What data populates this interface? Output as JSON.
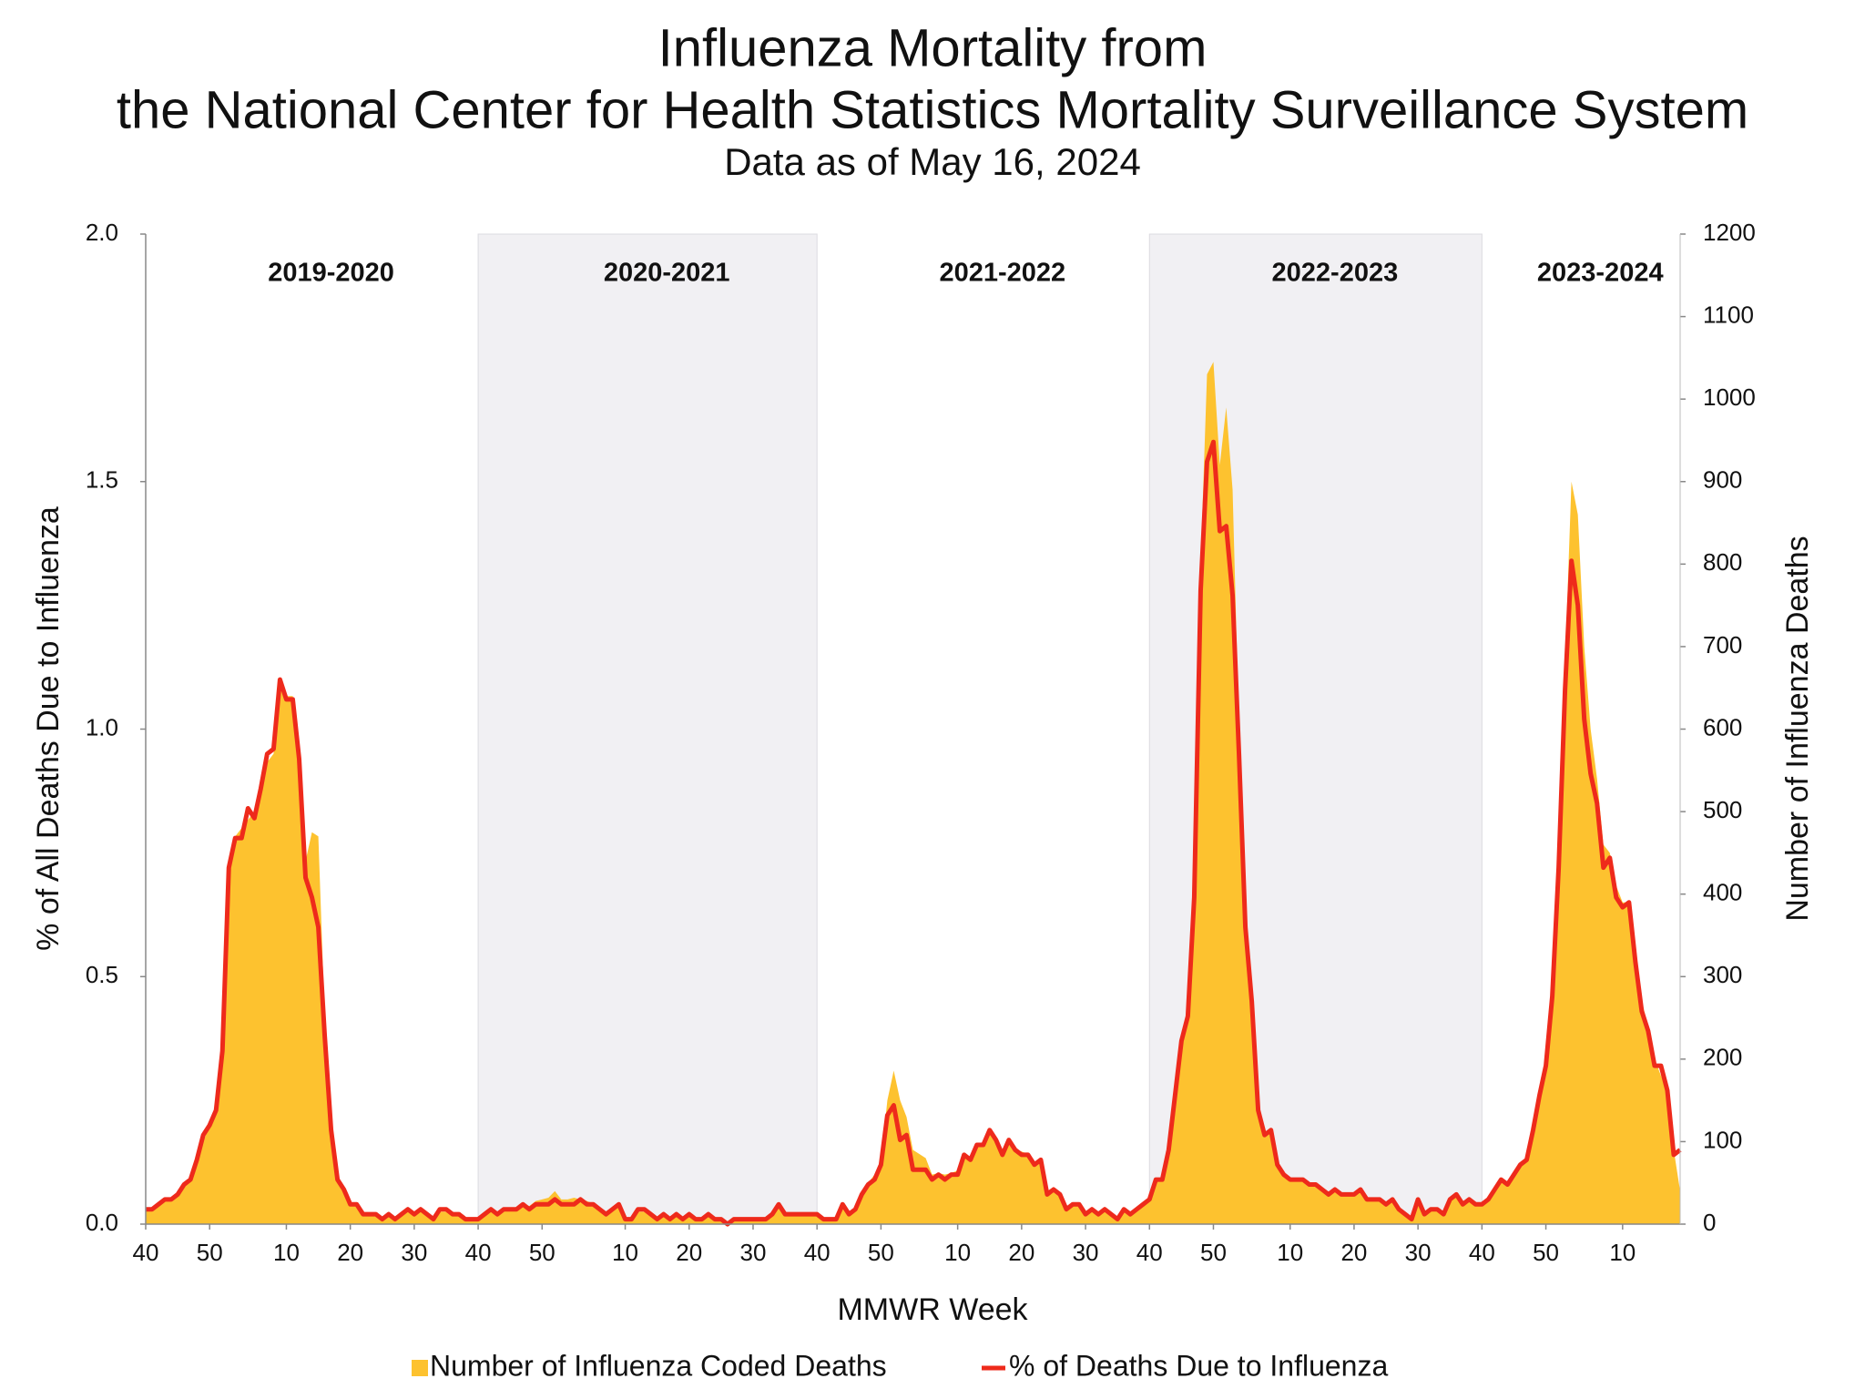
{
  "chart_data": {
    "type": "area_line",
    "title": [
      "Influenza Mortality from",
      "the National Center for Health Statistics Mortality Surveillance System"
    ],
    "subtitle": "Data as of May 16, 2024",
    "x_label": "MMWR Week",
    "y_label": "% of All Deaths Due to Influenza",
    "y2_label": "Number of Influenza Deaths",
    "annotations": [
      "2019-2020",
      "2020-2021",
      "2021-2022",
      "2022-2023",
      "2023-2024"
    ],
    "xlim": [
      0,
      240
    ],
    "xticks": [
      {
        "value": 0,
        "label": "40"
      },
      {
        "value": 10,
        "label": "50"
      },
      {
        "value": 22,
        "label": "10"
      },
      {
        "value": 32,
        "label": "20"
      },
      {
        "value": 42,
        "label": "30"
      },
      {
        "value": 52,
        "label": "40"
      },
      {
        "value": 62,
        "label": "50"
      },
      {
        "value": 75,
        "label": "10"
      },
      {
        "value": 85,
        "label": "20"
      },
      {
        "value": 95,
        "label": "30"
      },
      {
        "value": 105,
        "label": "40"
      },
      {
        "value": 115,
        "label": "50"
      },
      {
        "value": 127,
        "label": "10"
      },
      {
        "value": 137,
        "label": "20"
      },
      {
        "value": 147,
        "label": "30"
      },
      {
        "value": 157,
        "label": "40"
      },
      {
        "value": 167,
        "label": "50"
      },
      {
        "value": 179,
        "label": "10"
      },
      {
        "value": 189,
        "label": "20"
      },
      {
        "value": 199,
        "label": "30"
      },
      {
        "value": 209,
        "label": "40"
      },
      {
        "value": 219,
        "label": "50"
      },
      {
        "value": 231,
        "label": "10"
      }
    ],
    "ylim": [
      0,
      2
    ],
    "yticks": [
      {
        "value": 0,
        "label": "0.0"
      },
      {
        "value": 0.5,
        "label": "0.5"
      },
      {
        "value": 1,
        "label": "1.0"
      },
      {
        "value": 1.5,
        "label": "1.5"
      },
      {
        "value": 2,
        "label": "2.0"
      }
    ],
    "y2lim": [
      0,
      1200
    ],
    "y2ticks": [
      0,
      100,
      200,
      300,
      400,
      500,
      600,
      700,
      800,
      900,
      1000,
      1100,
      1200
    ],
    "legend": "bottom",
    "series": [
      {
        "name": "Number of Influenza Coded Deaths",
        "color": "#fdc22f",
        "axis": "y2",
        "kind": "area",
        "values": [
          18,
          18,
          22,
          28,
          30,
          35,
          45,
          58,
          75,
          100,
          120,
          135,
          210,
          430,
          470,
          480,
          490,
          500,
          530,
          560,
          570,
          650,
          640,
          640,
          570,
          440,
          475,
          470,
          250,
          115,
          55,
          40,
          25,
          22,
          15,
          12,
          12,
          8,
          12,
          8,
          12,
          15,
          12,
          15,
          10,
          8,
          15,
          15,
          10,
          10,
          8,
          8,
          8,
          10,
          15,
          14,
          18,
          20,
          20,
          25,
          22,
          28,
          30,
          32,
          40,
          30,
          30,
          32,
          30,
          28,
          25,
          20,
          15,
          18,
          20,
          8,
          8,
          15,
          15,
          12,
          8,
          10,
          8,
          10,
          8,
          10,
          6,
          6,
          10,
          6,
          6,
          3,
          6,
          8,
          8,
          8,
          8,
          8,
          12,
          22,
          12,
          12,
          12,
          12,
          12,
          12,
          8,
          8,
          8,
          22,
          12,
          20,
          40,
          50,
          60,
          75,
          150,
          186,
          150,
          130,
          90,
          85,
          80,
          60,
          62,
          60,
          62,
          65,
          85,
          80,
          95,
          98,
          110,
          100,
          88,
          100,
          90,
          88,
          85,
          75,
          80,
          40,
          45,
          35,
          20,
          25,
          25,
          12,
          18,
          12,
          18,
          12,
          8,
          18,
          12,
          18,
          25,
          30,
          55,
          55,
          90,
          160,
          230,
          260,
          420,
          800,
          1030,
          1045,
          920,
          990,
          890,
          600,
          380,
          290,
          140,
          110,
          115,
          75,
          60,
          55,
          55,
          55,
          50,
          48,
          42,
          38,
          42,
          38,
          38,
          38,
          42,
          30,
          30,
          30,
          25,
          30,
          18,
          12,
          8,
          30,
          12,
          18,
          18,
          12,
          30,
          36,
          25,
          30,
          25,
          25,
          30,
          42,
          55,
          50,
          60,
          72,
          78,
          115,
          160,
          195,
          280,
          440,
          680,
          900,
          860,
          700,
          600,
          540,
          460,
          450,
          410,
          390,
          390,
          330,
          270,
          240,
          200,
          180,
          160,
          90,
          40
        ]
      },
      {
        "name": "% of Deaths Due to Influenza",
        "color": "#ee2a1b",
        "axis": "y",
        "kind": "line",
        "values": [
          0.03,
          0.03,
          0.04,
          0.05,
          0.05,
          0.06,
          0.08,
          0.09,
          0.13,
          0.18,
          0.2,
          0.23,
          0.35,
          0.72,
          0.78,
          0.78,
          0.84,
          0.82,
          0.88,
          0.95,
          0.96,
          1.1,
          1.06,
          1.06,
          0.94,
          0.7,
          0.66,
          0.6,
          0.38,
          0.19,
          0.09,
          0.07,
          0.04,
          0.04,
          0.02,
          0.02,
          0.02,
          0.01,
          0.02,
          0.01,
          0.02,
          0.03,
          0.02,
          0.03,
          0.02,
          0.01,
          0.03,
          0.03,
          0.02,
          0.02,
          0.01,
          0.01,
          0.01,
          0.02,
          0.03,
          0.02,
          0.03,
          0.03,
          0.03,
          0.04,
          0.03,
          0.04,
          0.04,
          0.04,
          0.05,
          0.04,
          0.04,
          0.04,
          0.05,
          0.04,
          0.04,
          0.03,
          0.02,
          0.03,
          0.04,
          0.01,
          0.01,
          0.03,
          0.03,
          0.02,
          0.01,
          0.02,
          0.01,
          0.02,
          0.01,
          0.02,
          0.01,
          0.01,
          0.02,
          0.01,
          0.01,
          0,
          0.01,
          0.01,
          0.01,
          0.01,
          0.01,
          0.01,
          0.02,
          0.04,
          0.02,
          0.02,
          0.02,
          0.02,
          0.02,
          0.02,
          0.01,
          0.01,
          0.01,
          0.04,
          0.02,
          0.03,
          0.06,
          0.08,
          0.09,
          0.12,
          0.22,
          0.24,
          0.17,
          0.18,
          0.11,
          0.11,
          0.11,
          0.09,
          0.1,
          0.09,
          0.1,
          0.1,
          0.14,
          0.13,
          0.16,
          0.16,
          0.19,
          0.17,
          0.14,
          0.17,
          0.15,
          0.14,
          0.14,
          0.12,
          0.13,
          0.06,
          0.07,
          0.06,
          0.03,
          0.04,
          0.04,
          0.02,
          0.03,
          0.02,
          0.03,
          0.02,
          0.01,
          0.03,
          0.02,
          0.03,
          0.04,
          0.05,
          0.09,
          0.09,
          0.15,
          0.26,
          0.37,
          0.42,
          0.66,
          1.28,
          1.54,
          1.58,
          1.4,
          1.41,
          1.27,
          0.95,
          0.6,
          0.45,
          0.23,
          0.18,
          0.19,
          0.12,
          0.1,
          0.09,
          0.09,
          0.09,
          0.08,
          0.08,
          0.07,
          0.06,
          0.07,
          0.06,
          0.06,
          0.06,
          0.07,
          0.05,
          0.05,
          0.05,
          0.04,
          0.05,
          0.03,
          0.02,
          0.01,
          0.05,
          0.02,
          0.03,
          0.03,
          0.02,
          0.05,
          0.06,
          0.04,
          0.05,
          0.04,
          0.04,
          0.05,
          0.07,
          0.09,
          0.08,
          0.1,
          0.12,
          0.13,
          0.19,
          0.26,
          0.32,
          0.46,
          0.72,
          1.08,
          1.34,
          1.25,
          1.02,
          0.91,
          0.85,
          0.72,
          0.74,
          0.66,
          0.64,
          0.65,
          0.53,
          0.43,
          0.39,
          0.32,
          0.32,
          0.27,
          0.14,
          0.15
        ]
      }
    ]
  }
}
